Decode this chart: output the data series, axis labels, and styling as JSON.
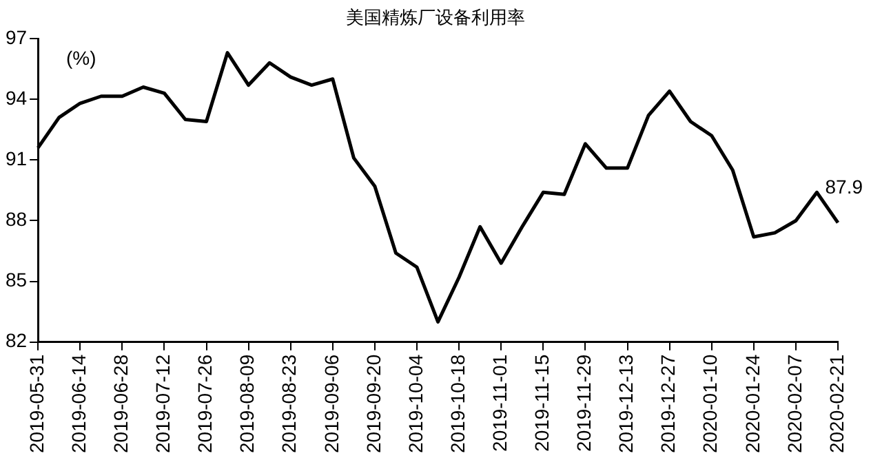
{
  "chart_data": {
    "type": "line",
    "title": "美国精炼厂设备利用率",
    "ylabel": "(%)",
    "categories": [
      "2019-05-31",
      null,
      "2019-06-14",
      null,
      "2019-06-28",
      null,
      "2019-07-12",
      null,
      "2019-07-26",
      null,
      "2019-08-09",
      null,
      "2019-08-23",
      null,
      "2019-09-06",
      null,
      "2019-09-20",
      null,
      "2019-10-04",
      null,
      "2019-10-18",
      null,
      "2019-11-01",
      null,
      "2019-11-15",
      null,
      "2019-11-29",
      null,
      "2019-12-13",
      null,
      "2019-12-27",
      null,
      "2020-01-10",
      null,
      "2020-01-24",
      null,
      "2020-02-07",
      null,
      "2020-02-21"
    ],
    "series": [
      {
        "color": "#000000",
        "values": [
          91.6,
          93.1,
          93.8,
          94.15,
          94.15,
          94.6,
          94.3,
          93.0,
          92.9,
          96.3,
          94.7,
          95.8,
          95.1,
          94.7,
          95.0,
          91.1,
          89.7,
          86.4,
          85.7,
          83.0,
          85.2,
          87.7,
          85.9,
          87.7,
          89.4,
          89.3,
          91.8,
          90.6,
          90.6,
          93.2,
          94.4,
          92.9,
          92.2,
          90.5,
          87.2,
          87.4,
          88.0,
          89.4,
          87.9
        ],
        "value_labels": [
          null,
          null,
          null,
          null,
          null,
          null,
          null,
          null,
          null,
          null,
          null,
          null,
          null,
          null,
          null,
          null,
          null,
          null,
          null,
          null,
          null,
          null,
          null,
          null,
          null,
          null,
          null,
          null,
          null,
          null,
          null,
          null,
          null,
          null,
          null,
          null,
          null,
          null,
          "87.9"
        ]
      }
    ],
    "ylim": [
      82,
      97
    ],
    "yticks": [
      82,
      85,
      88,
      91,
      94,
      97
    ],
    "grid": false,
    "legend": false,
    "marker": "none",
    "line_style": "solid"
  }
}
